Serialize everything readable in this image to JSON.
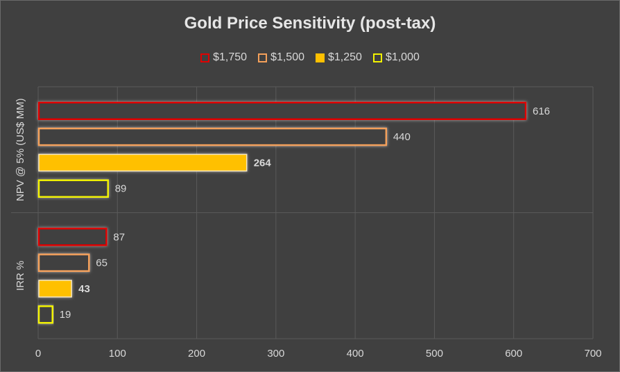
{
  "chart_data": {
    "type": "bar",
    "orientation": "horizontal",
    "title": "Gold Price Sensitivity (post-tax)",
    "categories": [
      "NPV @ 5% (US$ MM)",
      "IRR %"
    ],
    "series": [
      {
        "name": "$1,750",
        "values": [
          616,
          87
        ],
        "color": "#e00000",
        "fill": "outline"
      },
      {
        "name": "$1,500",
        "values": [
          440,
          65
        ],
        "color": "#f4a05a",
        "fill": "outline"
      },
      {
        "name": "$1,250",
        "values": [
          264,
          43
        ],
        "color": "#ffc000",
        "fill": "solid"
      },
      {
        "name": "$1,000",
        "values": [
          89,
          19
        ],
        "color": "#f2f200",
        "fill": "outline"
      }
    ],
    "data_labels": [
      [
        "616",
        "87"
      ],
      [
        "440",
        "65"
      ],
      [
        "264",
        "43"
      ],
      [
        "89",
        "19"
      ]
    ],
    "bold_series": "$1,250",
    "xlim": [
      0,
      700
    ],
    "xticks": [
      "0",
      "100",
      "200",
      "300",
      "400",
      "500",
      "600",
      "700"
    ],
    "grid": true,
    "legend_position": "top"
  }
}
